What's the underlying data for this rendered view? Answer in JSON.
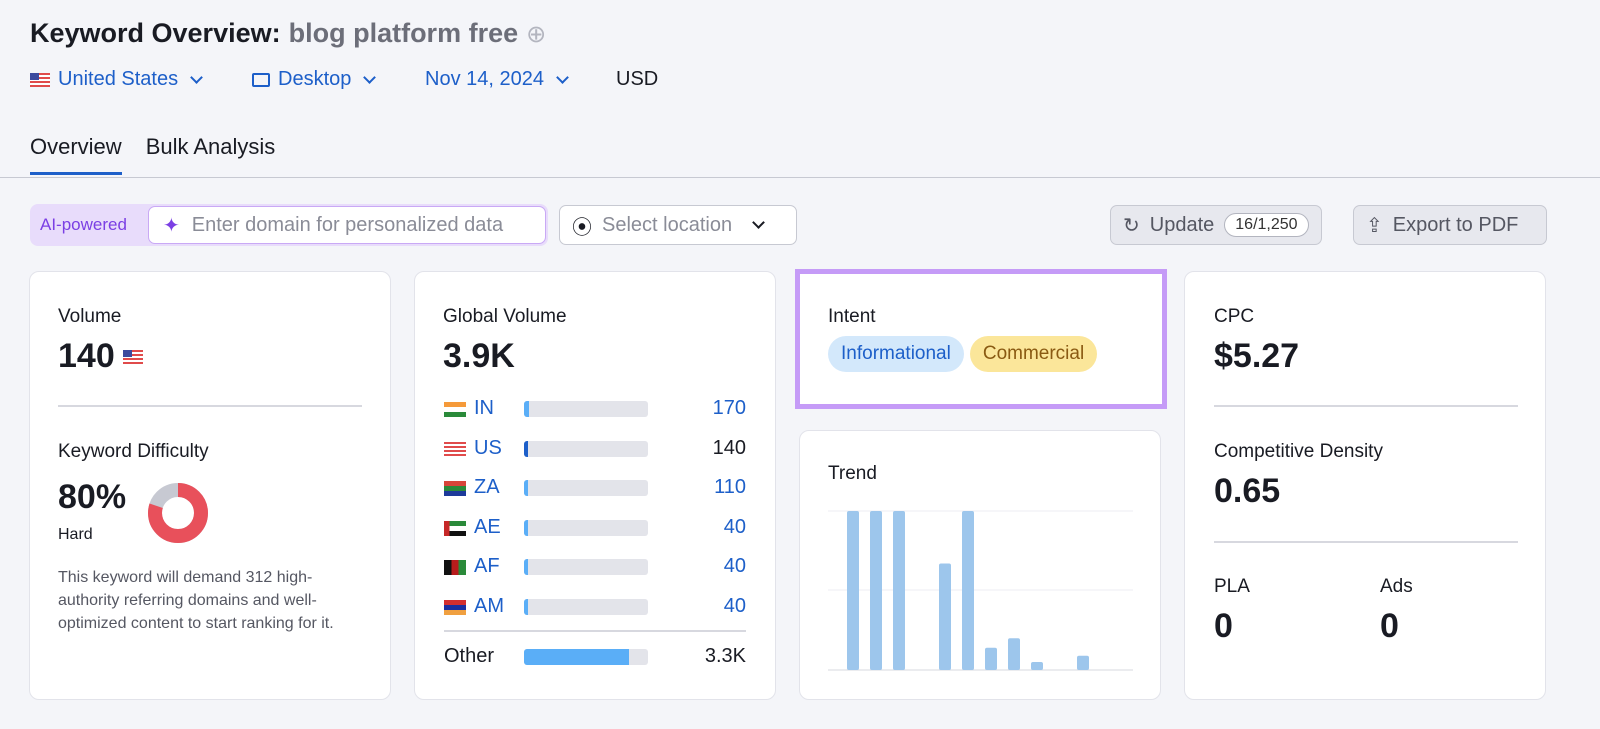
{
  "header": {
    "title": "Keyword Overview:",
    "keyword": "blog platform free",
    "add_icon": "plus-circle-icon",
    "country": "United States",
    "device": "Desktop",
    "date": "Nov 14, 2024",
    "currency": "USD"
  },
  "tabs": [
    {
      "label": "Overview",
      "active": true
    },
    {
      "label": "Bulk Analysis",
      "active": false
    }
  ],
  "toolbar": {
    "ai_label": "AI-powered",
    "domain_placeholder": "Enter domain for personalized data",
    "location_placeholder": "Select location",
    "update_label": "Update",
    "update_count": "16/1,250",
    "export_label": "Export to PDF"
  },
  "volume": {
    "label": "Volume",
    "value": "140"
  },
  "difficulty": {
    "label": "Keyword Difficulty",
    "value": "80%",
    "percent": 80,
    "level": "Hard",
    "description": "This keyword will demand 312 high-authority referring domains and well-optimized content to start ranking for it.",
    "color": "#e8505b"
  },
  "global": {
    "label": "Global Volume",
    "value": "3.9K",
    "countries": [
      {
        "code": "IN",
        "value": "170",
        "fill": 0.04
      },
      {
        "code": "US",
        "value": "140",
        "fill": 0.03
      },
      {
        "code": "ZA",
        "value": "110",
        "fill": 0.03
      },
      {
        "code": "AE",
        "value": "40",
        "fill": 0.02
      },
      {
        "code": "AF",
        "value": "40",
        "fill": 0.02
      },
      {
        "code": "AM",
        "value": "40",
        "fill": 0.02
      }
    ],
    "other": {
      "label": "Other",
      "value": "3.3K",
      "fill": 0.85
    }
  },
  "intent": {
    "label": "Intent",
    "tags": [
      {
        "label": "Informational",
        "bg": "#d3e8fb",
        "color": "#1d5fc9"
      },
      {
        "label": "Commercial",
        "bg": "#fbe69a",
        "color": "#8a5a12"
      }
    ]
  },
  "trend": {
    "label": "Trend",
    "values": [
      1,
      1,
      1,
      0,
      0.67,
      1,
      0.14,
      0.2,
      0.05,
      0,
      0.09,
      0
    ]
  },
  "cpc": {
    "label": "CPC",
    "value": "$5.27"
  },
  "density": {
    "label": "Competitive Density",
    "value": "0.65"
  },
  "pla": {
    "label": "PLA",
    "value": "0"
  },
  "ads": {
    "label": "Ads",
    "value": "0"
  }
}
